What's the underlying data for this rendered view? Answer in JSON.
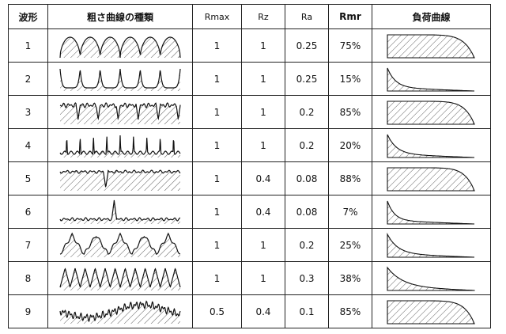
{
  "headers": {
    "wave": "波形",
    "profile": "粗さ曲線の種類",
    "rmax": "Rmax",
    "rz": "Rz",
    "ra": "Ra",
    "rmr": "Rmr",
    "curve": "負荷曲線"
  },
  "rows": [
    {
      "no": "1",
      "rmax": "1",
      "rz": "1",
      "ra": "0.25",
      "rmr": "75%",
      "profile": "arches-up",
      "curve": 0.75
    },
    {
      "no": "2",
      "rmax": "1",
      "rz": "1",
      "ra": "0.25",
      "rmr": "15%",
      "profile": "cusps-up",
      "curve": 0.15
    },
    {
      "no": "3",
      "rmax": "1",
      "rz": "1",
      "ra": "0.2",
      "rmr": "85%",
      "profile": "plateau-notches",
      "curve": 0.85
    },
    {
      "no": "4",
      "rmax": "1",
      "rz": "1",
      "ra": "0.2",
      "rmr": "20%",
      "profile": "spikes",
      "curve": 0.2
    },
    {
      "no": "5",
      "rmax": "1",
      "rz": "0.4",
      "ra": "0.08",
      "rmr": "88%",
      "profile": "single-notch",
      "curve": 0.88
    },
    {
      "no": "6",
      "rmax": "1",
      "rz": "0.4",
      "ra": "0.08",
      "rmr": "7%",
      "profile": "single-peak",
      "curve": 0.07
    },
    {
      "no": "7",
      "rmax": "1",
      "rz": "1",
      "ra": "0.2",
      "rmr": "25%",
      "profile": "triangles",
      "curve": 0.25
    },
    {
      "no": "8",
      "rmax": "1",
      "rz": "1",
      "ra": "0.3",
      "rmr": "38%",
      "profile": "sawtooth",
      "curve": 0.38
    },
    {
      "no": "9",
      "rmax": "0.5",
      "rz": "0.4",
      "ra": "0.1",
      "rmr": "85%",
      "profile": "wavy-noise",
      "curve": 0.85
    }
  ]
}
